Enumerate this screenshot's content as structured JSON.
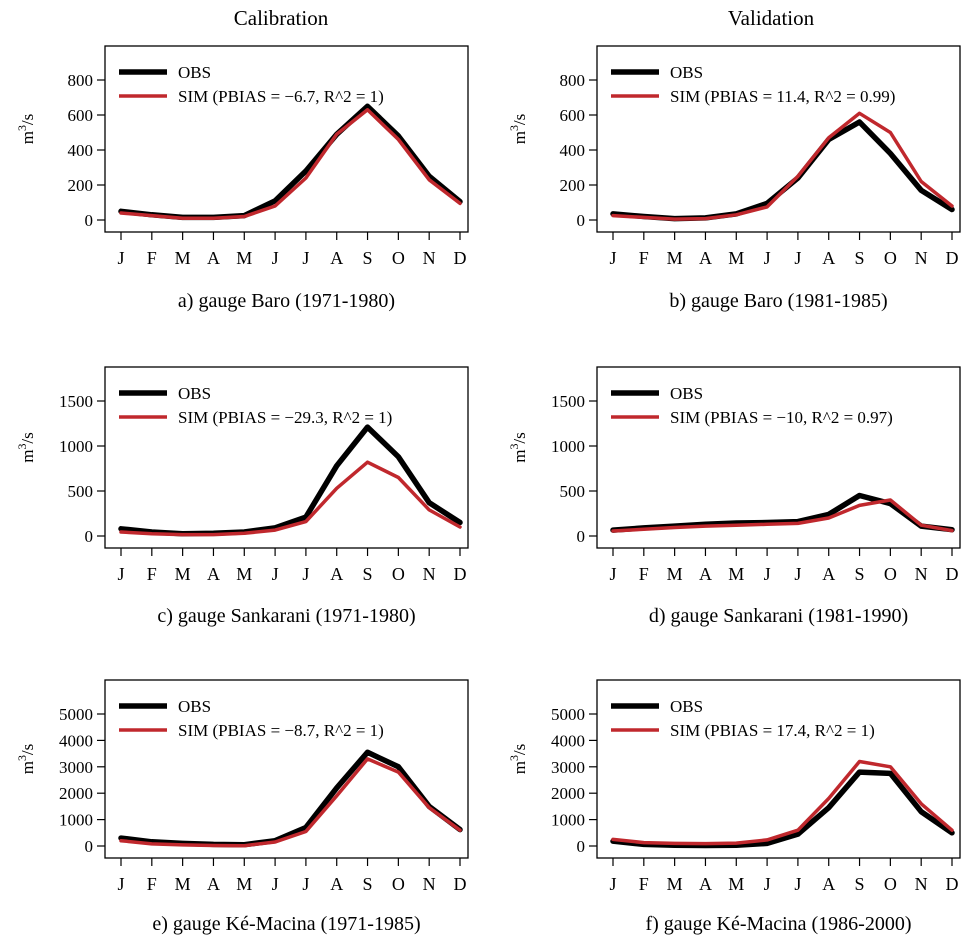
{
  "column_titles": {
    "left": "Calibration",
    "right": "Validation"
  },
  "colors": {
    "obs": "#000000",
    "sim": "#c0282d"
  },
  "chart_data": [
    {
      "type": "line",
      "id": "a",
      "caption": "a) gauge Baro (1971-1980)",
      "ylabel": "m3/s",
      "categories": [
        "J",
        "F",
        "M",
        "A",
        "M",
        "J",
        "J",
        "A",
        "S",
        "O",
        "N",
        "D"
      ],
      "ylim": [
        0,
        800
      ],
      "yticks": [
        0,
        200,
        400,
        600,
        800
      ],
      "legend_position": "top-left",
      "series": [
        {
          "name": "OBS",
          "values": [
            50,
            30,
            15,
            15,
            25,
            110,
            280,
            490,
            650,
            480,
            250,
            105
          ]
        },
        {
          "name": "SIM (PBIAS = −6.7, R^2 = 1)",
          "values": [
            40,
            25,
            10,
            10,
            20,
            80,
            240,
            490,
            630,
            460,
            230,
            95
          ]
        }
      ]
    },
    {
      "type": "line",
      "id": "b",
      "caption": "b) gauge Baro (1981-1985)",
      "ylabel": "m3/s",
      "categories": [
        "J",
        "F",
        "M",
        "A",
        "M",
        "J",
        "J",
        "A",
        "S",
        "O",
        "N",
        "D"
      ],
      "ylim": [
        0,
        800
      ],
      "yticks": [
        0,
        200,
        400,
        600,
        800
      ],
      "legend_position": "top-left",
      "series": [
        {
          "name": "OBS",
          "values": [
            35,
            20,
            8,
            12,
            35,
            95,
            240,
            460,
            560,
            380,
            170,
            60
          ]
        },
        {
          "name": "SIM (PBIAS = 11.4, R^2 = 0.99)",
          "values": [
            25,
            15,
            5,
            8,
            30,
            75,
            250,
            470,
            610,
            500,
            220,
            80
          ]
        }
      ]
    },
    {
      "type": "line",
      "id": "c",
      "caption": "c) gauge Sankarani (1971-1980)",
      "ylabel": "m3/s",
      "categories": [
        "J",
        "F",
        "M",
        "A",
        "M",
        "J",
        "J",
        "A",
        "S",
        "O",
        "N",
        "D"
      ],
      "ylim": [
        0,
        1500
      ],
      "yticks": [
        0,
        500,
        1000,
        1500
      ],
      "legend_position": "top-left",
      "series": [
        {
          "name": "OBS",
          "values": [
            80,
            45,
            25,
            30,
            45,
            90,
            210,
            780,
            1210,
            880,
            370,
            150
          ]
        },
        {
          "name": "SIM (PBIAS = −29.3, R^2 = 1)",
          "values": [
            45,
            25,
            15,
            15,
            30,
            65,
            160,
            530,
            820,
            650,
            290,
            100
          ]
        }
      ]
    },
    {
      "type": "line",
      "id": "d",
      "caption": "d) gauge Sankarani (1981-1990)",
      "ylabel": "m3/s",
      "categories": [
        "J",
        "F",
        "M",
        "A",
        "M",
        "J",
        "J",
        "A",
        "S",
        "O",
        "N",
        "D"
      ],
      "ylim": [
        0,
        1500
      ],
      "yticks": [
        0,
        500,
        1000,
        1500
      ],
      "legend_position": "top-left",
      "series": [
        {
          "name": "OBS",
          "values": [
            65,
            90,
            110,
            130,
            145,
            150,
            160,
            240,
            450,
            360,
            110,
            70
          ]
        },
        {
          "name": "SIM (PBIAS = −10, R^2 = 0.97)",
          "values": [
            55,
            75,
            95,
            110,
            120,
            130,
            140,
            200,
            340,
            400,
            120,
            60
          ]
        }
      ]
    },
    {
      "type": "line",
      "id": "e",
      "caption": "e) gauge Ké-Macina (1971-1985)",
      "ylabel": "m3/s",
      "categories": [
        "J",
        "F",
        "M",
        "A",
        "M",
        "J",
        "J",
        "A",
        "S",
        "O",
        "N",
        "D"
      ],
      "ylim": [
        0,
        5000
      ],
      "yticks": [
        0,
        1000,
        2000,
        3000,
        4000,
        5000
      ],
      "legend_position": "top-left",
      "series": [
        {
          "name": "OBS",
          "values": [
            300,
            160,
            100,
            60,
            50,
            200,
            700,
            2200,
            3550,
            3000,
            1500,
            620
          ]
        },
        {
          "name": "SIM (PBIAS = −8.7, R^2 = 1)",
          "values": [
            200,
            80,
            40,
            20,
            10,
            150,
            550,
            1900,
            3300,
            2800,
            1450,
            600
          ]
        }
      ]
    },
    {
      "type": "line",
      "id": "f",
      "caption": "f) gauge Ké-Macina (1986-2000)",
      "ylabel": "m3/s",
      "categories": [
        "J",
        "F",
        "M",
        "A",
        "M",
        "J",
        "J",
        "A",
        "S",
        "O",
        "N",
        "D"
      ],
      "ylim": [
        0,
        5000
      ],
      "yticks": [
        0,
        1000,
        2000,
        3000,
        4000,
        5000
      ],
      "legend_position": "top-left",
      "series": [
        {
          "name": "OBS",
          "values": [
            180,
            60,
            30,
            20,
            30,
            100,
            450,
            1450,
            2800,
            2750,
            1300,
            500
          ]
        },
        {
          "name": "SIM (PBIAS = 17.4, R^2 = 1)",
          "values": [
            250,
            130,
            100,
            90,
            110,
            230,
            600,
            1800,
            3200,
            3000,
            1600,
            600
          ]
        }
      ]
    }
  ]
}
